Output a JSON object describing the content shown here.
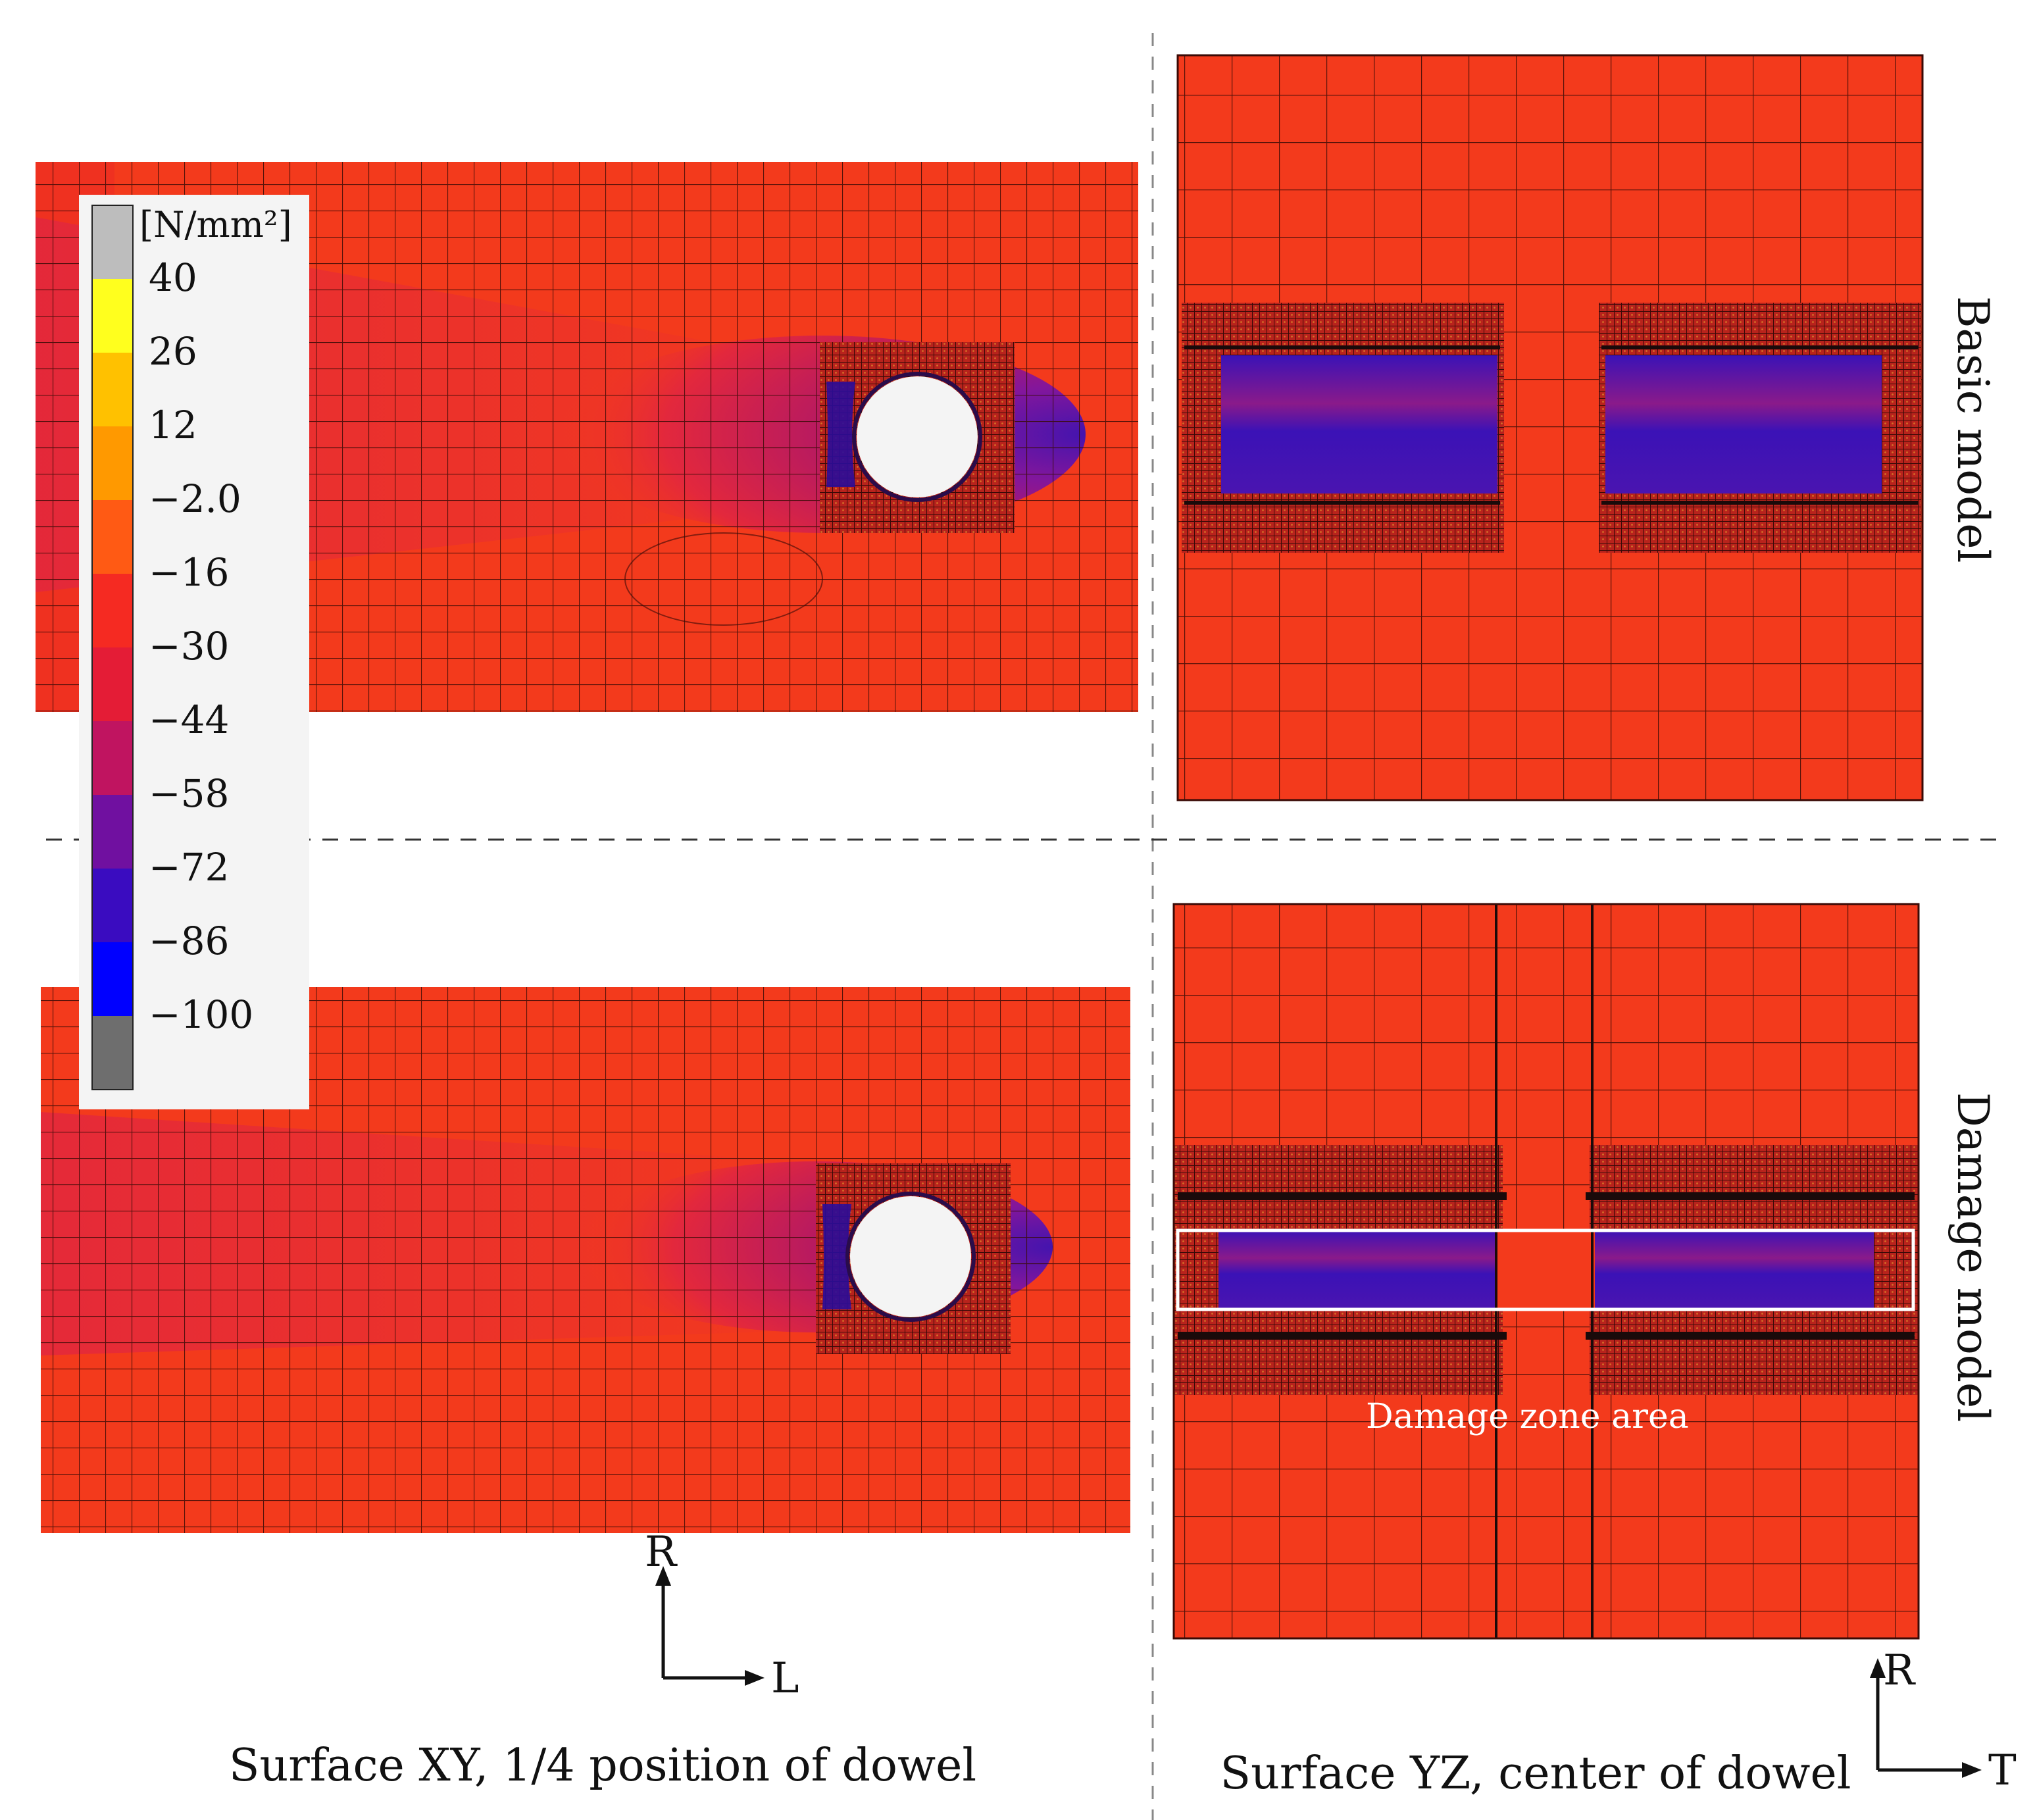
{
  "legend": {
    "unit": "[N/mm²]",
    "ticks": [
      "40",
      "26",
      "12",
      "−2.0",
      "−16",
      "−30",
      "−44",
      "−58",
      "−72",
      "−86",
      "−100"
    ],
    "colors": [
      "#bdbdbd",
      "#ffff1e",
      "#ffc100",
      "#ff9900",
      "#ff5a14",
      "#f52a22",
      "#e41c36",
      "#c01460",
      "#7010a0",
      "#3a0cc0",
      "#0000ff",
      "#6e6e6e"
    ]
  },
  "row_labels": {
    "basic": "Basic model",
    "damage": "Damage model"
  },
  "annotations": {
    "damage_zone": "Damage zone area"
  },
  "axes_left": {
    "vertical": "R",
    "horizontal": "L"
  },
  "axes_right": {
    "vertical": "R",
    "horizontal": "T"
  },
  "captions": {
    "left": "Surface XY, 1/4 position of dowel",
    "right": "Surface YZ, center of dowel"
  },
  "palette": {
    "base": "#f33a1c",
    "mid": "#e2273e",
    "deep": "#b41864",
    "purple": "#7d14a2",
    "blue": "#3b12b6",
    "mesh_line": "#3a0a06",
    "divider": "#666666"
  }
}
